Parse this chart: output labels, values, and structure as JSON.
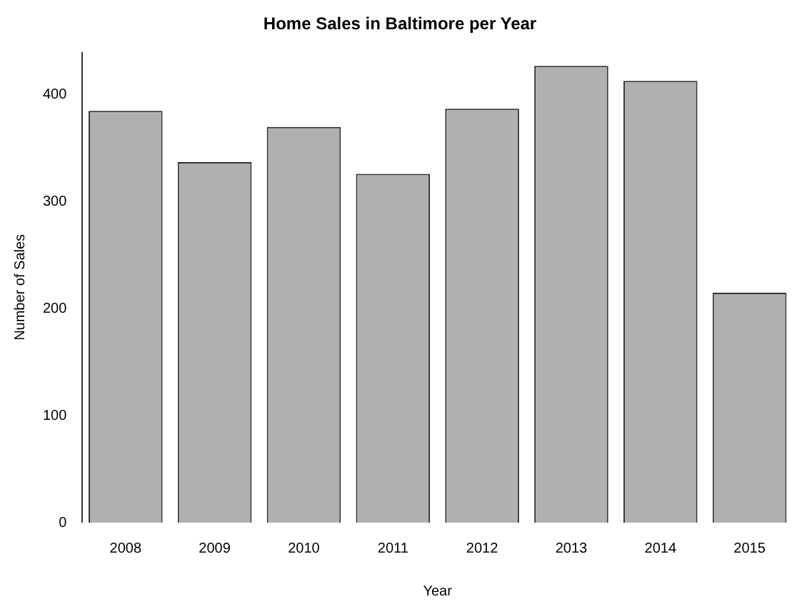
{
  "chart_data": {
    "type": "bar",
    "title": "Home Sales in Baltimore per Year",
    "xlabel": "Year",
    "ylabel": "Number of Sales",
    "categories": [
      "2008",
      "2009",
      "2010",
      "2011",
      "2012",
      "2013",
      "2014",
      "2015"
    ],
    "values": [
      385,
      337,
      370,
      326,
      387,
      427,
      413,
      215
    ],
    "color": "#b0b0b0",
    "ylim": [
      0,
      440
    ],
    "yticks": [
      0,
      100,
      200,
      300,
      400
    ],
    "grid": false,
    "legend": false
  }
}
